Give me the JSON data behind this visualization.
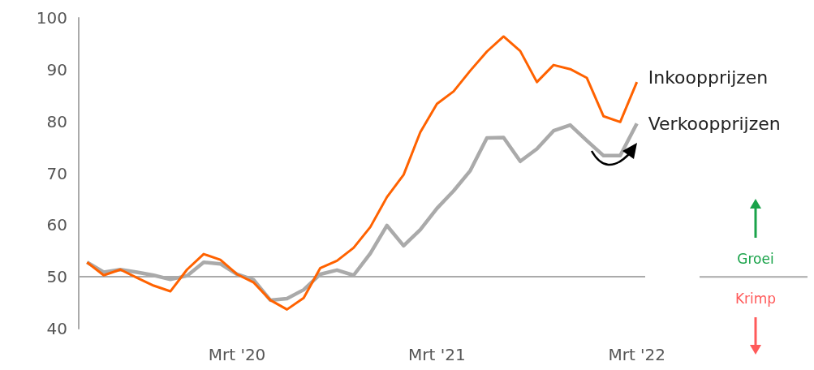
{
  "chart_data": {
    "type": "line",
    "categories": [
      null,
      null,
      null,
      null,
      null,
      null,
      null,
      null,
      null,
      "Mrt '20",
      null,
      null,
      null,
      null,
      null,
      null,
      null,
      null,
      null,
      null,
      null,
      "Mrt '21",
      null,
      null,
      null,
      null,
      null,
      null,
      null,
      null,
      null,
      null,
      null,
      "Mrt '22"
    ],
    "series": [
      {
        "name": "Inkoopprijzen",
        "color": "#ff6200",
        "values": [
          52.8,
          50.3,
          51.4,
          49.8,
          48.3,
          47.2,
          51.4,
          54.4,
          53.3,
          50.5,
          48.9,
          45.5,
          43.7,
          45.9,
          51.7,
          53.1,
          55.6,
          59.6,
          65.4,
          69.7,
          77.9,
          83.4,
          85.8,
          89.8,
          93.5,
          96.4,
          93.6,
          87.6,
          90.9,
          90.1,
          88.4,
          81.0,
          79.9,
          87.6
        ]
      },
      {
        "name": "Verkoopprijzen",
        "color": "#aaaaaa",
        "values": [
          52.8,
          50.9,
          51.4,
          50.9,
          50.3,
          49.5,
          50.2,
          52.8,
          52.5,
          50.5,
          49.4,
          45.5,
          45.8,
          47.5,
          50.5,
          51.3,
          50.3,
          54.5,
          59.9,
          56.0,
          59.1,
          63.2,
          66.6,
          70.5,
          76.8,
          76.9,
          72.3,
          74.7,
          78.2,
          79.3,
          76.3,
          73.4,
          73.4,
          79.6
        ]
      }
    ],
    "ylim": [
      40,
      100
    ],
    "yticks": [
      40,
      50,
      60,
      70,
      80,
      90,
      100
    ],
    "ref_lines": [
      {
        "axis": "y",
        "value": 50,
        "color": "#aaaaaa"
      }
    ],
    "annotations": [
      "Groei",
      "Krimp"
    ],
    "grid": false,
    "legend": false,
    "marker": "none",
    "line_style": "solid"
  }
}
